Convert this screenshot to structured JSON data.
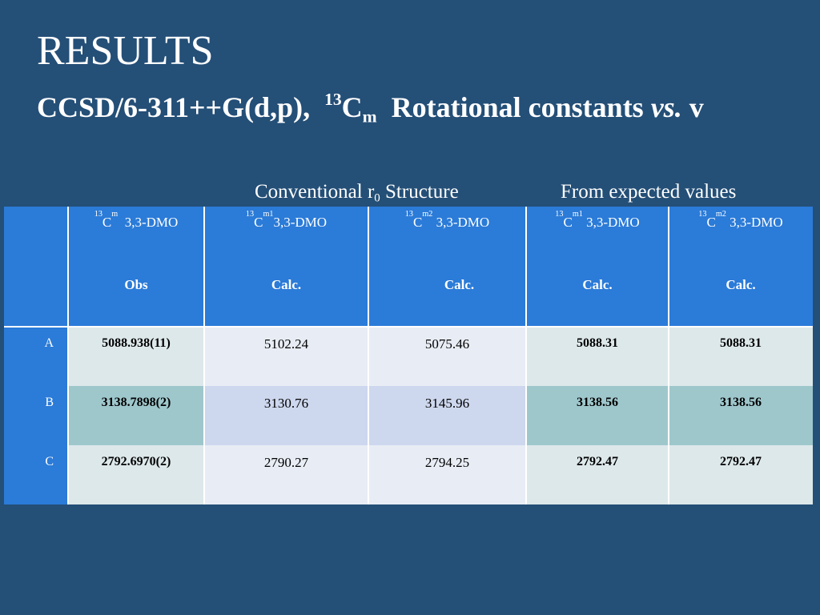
{
  "title": "RESULTS",
  "subtitle": {
    "prefix": "CCSD/6-311++G(d,p),",
    "sup": "13",
    "main": "C",
    "sub": "m",
    "middle": "Rotational constants",
    "italic": "vs.",
    "end": "v"
  },
  "group_headers": [
    {
      "main": "Conventional r",
      "sub": "0",
      "rest": " Structure"
    },
    {
      "main": "From expected values"
    }
  ],
  "table": {
    "header": [
      {
        "sup": "13",
        "main": "C",
        "sub": "m",
        "rest": "  3,3-DMO"
      },
      {
        "sup": "13",
        "main": "C",
        "sub": "m1",
        "rest": "3,3-DMO"
      },
      {
        "sup": "13",
        "main": "C",
        "sub": "m2",
        "rest": " 3,3-DMO"
      },
      {
        "sup": "13",
        "main": "C",
        "sub": "m1",
        "rest": " 3,3-DMO"
      },
      {
        "sup": "13",
        "main": "C",
        "sub": "m2",
        "rest": " 3,3-DMO"
      }
    ],
    "subheader": [
      "Obs",
      "Calc.",
      "Calc.",
      "Calc.",
      "Calc."
    ],
    "rows": [
      [
        "A",
        "5088.938(11)",
        "5102.24",
        "5075.46",
        "5088.31",
        "5088.31"
      ],
      [
        "B",
        "3138.7898(2)",
        "3130.76",
        "3145.96",
        "3138.56",
        "3138.56"
      ],
      [
        "C",
        "2792.6970(2)",
        "2790.27",
        "2794.25",
        "2792.47",
        "2792.47"
      ]
    ]
  }
}
